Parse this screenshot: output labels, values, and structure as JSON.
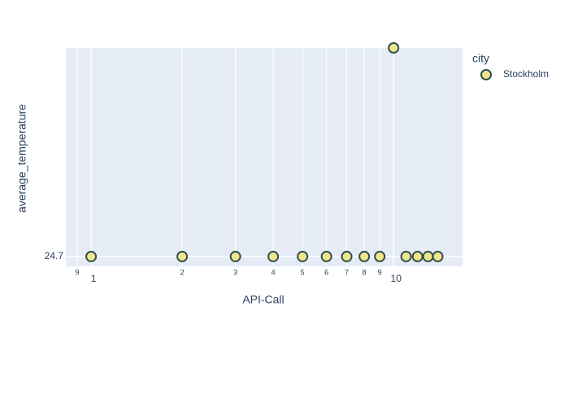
{
  "chart_data": {
    "type": "scatter",
    "x_label": "API-Call",
    "y_label": "average_temperature",
    "legend_title": "city",
    "legend_position": "right",
    "x_log": true,
    "grid": true,
    "xlim": [
      0.825,
      16.9
    ],
    "xticks": [
      1,
      10
    ],
    "xticks_minor": [
      {
        "value": 0.9,
        "label": "9"
      },
      2,
      3,
      4,
      5,
      6,
      7,
      8,
      9
    ],
    "ylim": [
      24.6953,
      24.8
    ],
    "yticks": [
      24.7
    ],
    "series": [
      {
        "name": "Stockholm",
        "color": "#f0e68c",
        "x": [
          1,
          2,
          3,
          4,
          5,
          6,
          7,
          8,
          9,
          10,
          11,
          12,
          13,
          14
        ],
        "values": [
          24.7,
          24.7,
          24.7,
          24.7,
          24.7,
          24.7,
          24.7,
          24.7,
          24.7,
          24.8,
          24.7,
          24.7,
          24.7,
          24.7
        ]
      }
    ]
  }
}
